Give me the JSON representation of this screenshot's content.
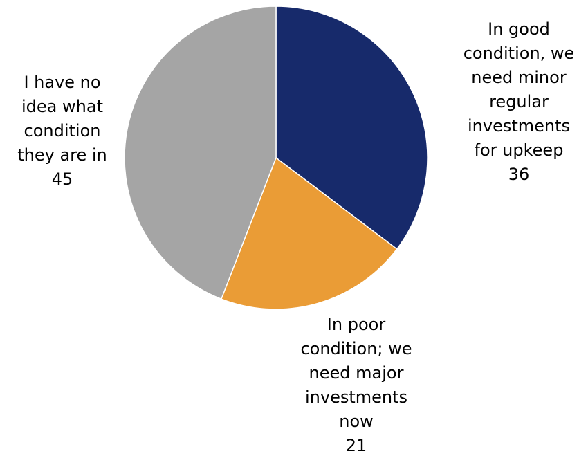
{
  "chart_data": {
    "type": "pie",
    "title": "",
    "slices": [
      {
        "label": "In good condition, we need minor regular investments for upkeep",
        "value": 36,
        "color": "#172a6b"
      },
      {
        "label": "In poor condition; we need major investments now",
        "value": 21,
        "color": "#ea9c36"
      },
      {
        "label": "I have no idea what condition they are in",
        "value": 45,
        "color": "#a5a5a5"
      }
    ],
    "start_angle": "12 o'clock",
    "direction": "clockwise",
    "legend": "none",
    "slice_borders": "#ffffff"
  },
  "labels": [
    {
      "lines": [
        "In good",
        "condition, we",
        "need minor",
        "regular",
        "investments",
        "for upkeep"
      ],
      "value": "36"
    },
    {
      "lines": [
        "In poor",
        "condition; we",
        "need major",
        "investments",
        "now"
      ],
      "value": "21"
    },
    {
      "lines": [
        "I have no",
        "idea what",
        "condition",
        "they are in"
      ],
      "value": "45"
    }
  ]
}
